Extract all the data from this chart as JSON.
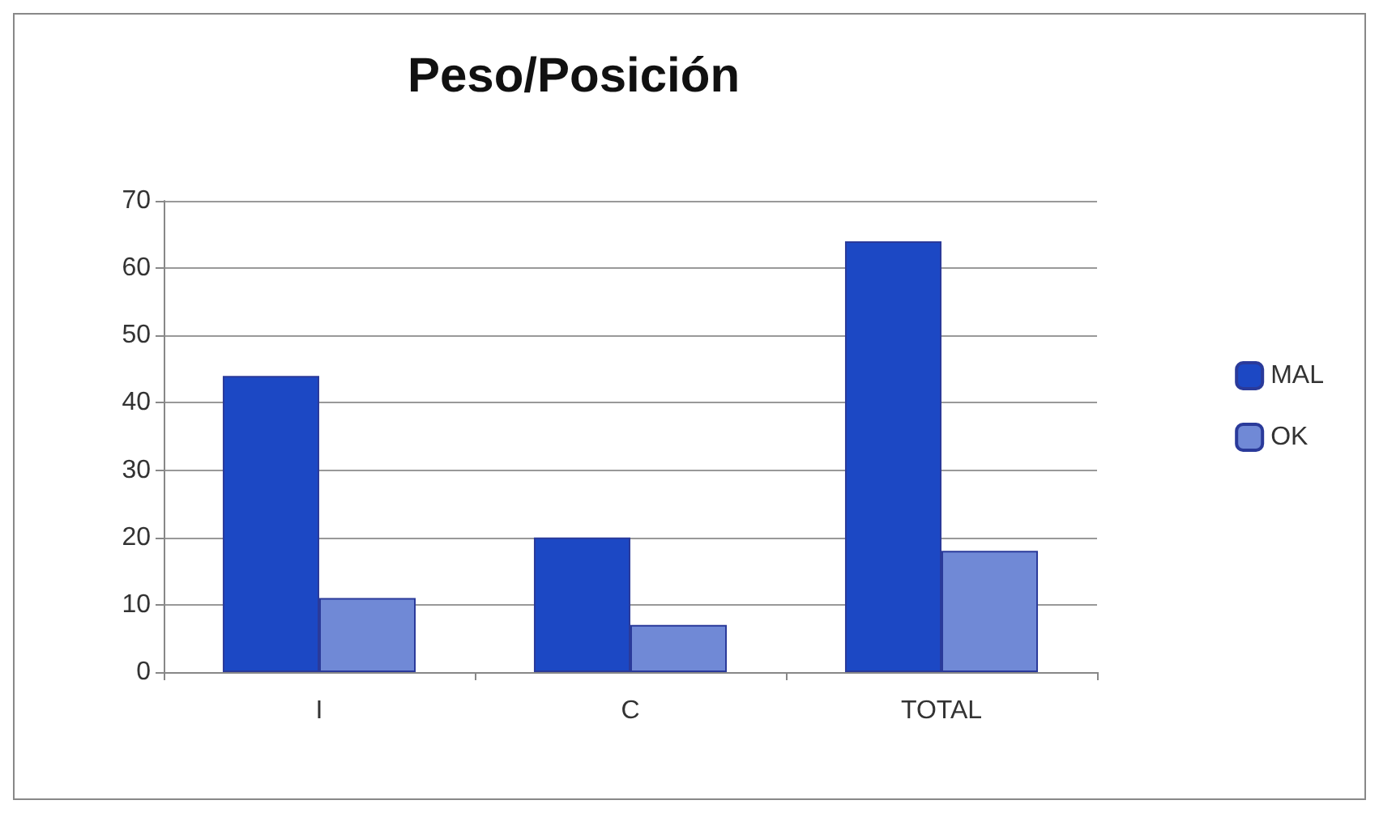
{
  "chart_data": {
    "type": "bar",
    "title": "Peso/Posición",
    "categories": [
      "I",
      "C",
      "TOTAL"
    ],
    "series": [
      {
        "name": "MAL",
        "color": "#1c48c4",
        "values": [
          44,
          20,
          64
        ]
      },
      {
        "name": "OK",
        "color": "#7089d6",
        "values": [
          11,
          7,
          18
        ]
      }
    ],
    "ylim": [
      0,
      70
    ],
    "yticks": [
      0,
      10,
      20,
      30,
      40,
      50,
      60,
      70
    ],
    "grid": "y",
    "legend": "right"
  }
}
